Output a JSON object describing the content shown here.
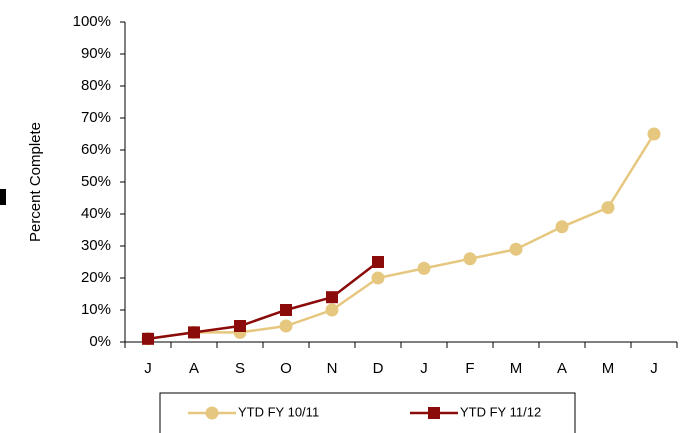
{
  "chart_data": {
    "type": "line",
    "y_label": "Percent Complete",
    "categories": [
      "J",
      "A",
      "S",
      "O",
      "N",
      "D",
      "J",
      "F",
      "M",
      "A",
      "M",
      "J"
    ],
    "series": [
      {
        "name": "YTD FY 10/11",
        "color": "#e6c77f",
        "marker": "circle",
        "values": [
          1,
          3,
          3,
          5,
          10,
          20,
          23,
          26,
          29,
          36,
          42,
          65
        ]
      },
      {
        "name": "YTD FY 11/12",
        "color": "#8b0a0a",
        "marker": "square",
        "values": [
          1,
          3,
          5,
          10,
          14,
          25,
          null,
          null,
          null,
          null,
          null,
          null
        ]
      }
    ],
    "ylim": [
      0,
      100
    ],
    "yticks": [
      {
        "value": 0,
        "label": "0%"
      },
      {
        "value": 10,
        "label": "10%"
      },
      {
        "value": 20,
        "label": "20%"
      },
      {
        "value": 30,
        "label": "30%"
      },
      {
        "value": 40,
        "label": "40%"
      },
      {
        "value": 50,
        "label": "50%"
      },
      {
        "value": 60,
        "label": "60%"
      },
      {
        "value": 70,
        "label": "70%"
      },
      {
        "value": 80,
        "label": "80%"
      },
      {
        "value": 90,
        "label": "90%"
      },
      {
        "value": 100,
        "label": "100%"
      }
    ],
    "legend": "bottom"
  }
}
